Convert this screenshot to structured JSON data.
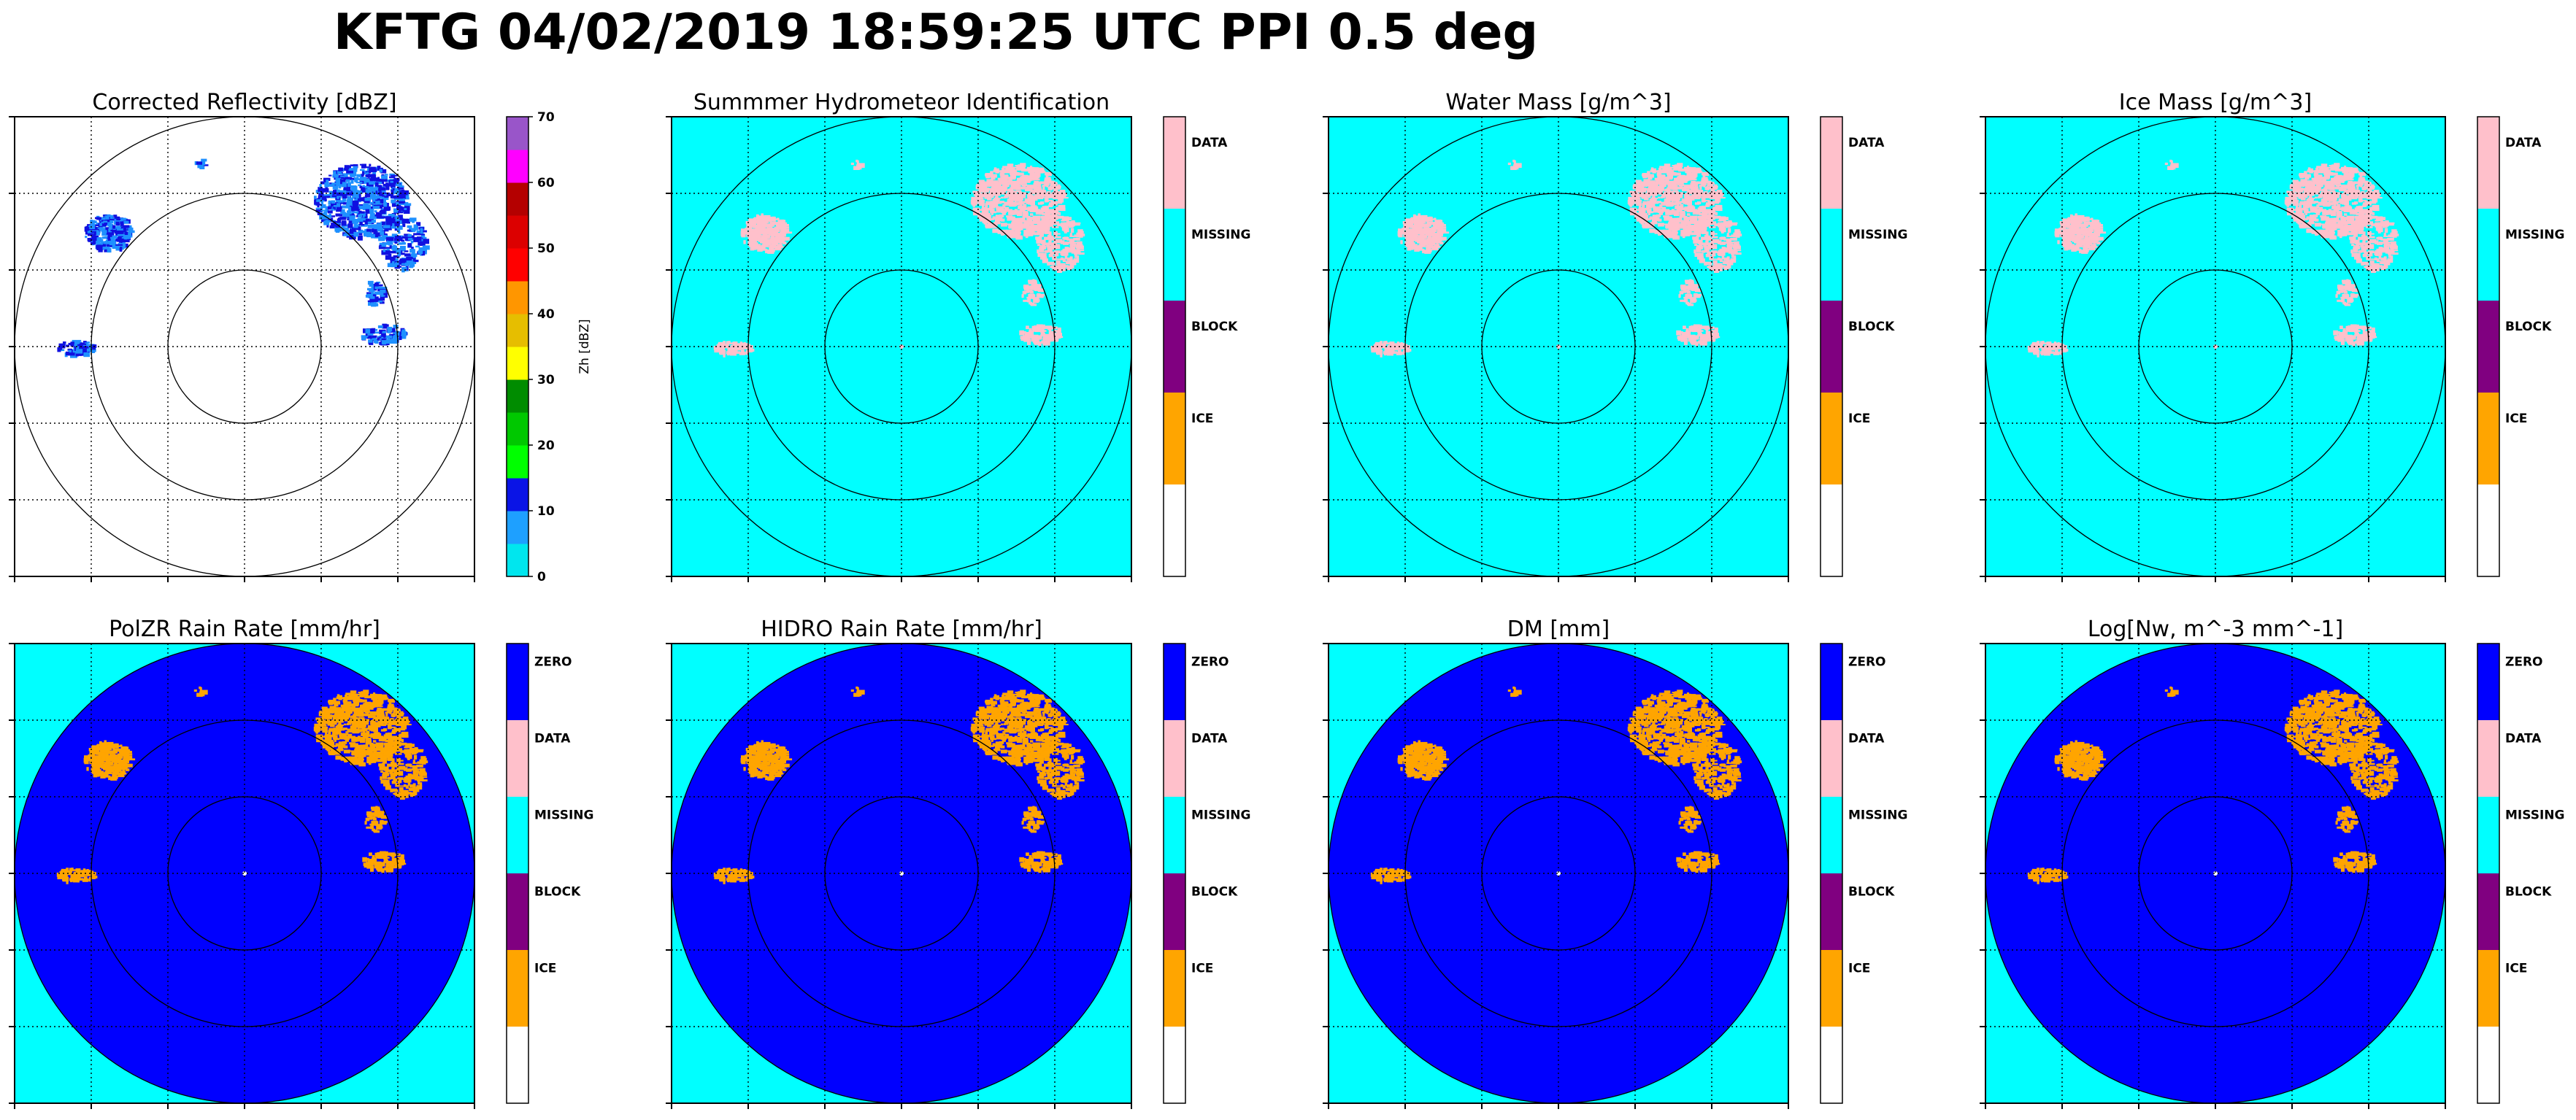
{
  "figure": {
    "title": "KFTG 04/02/2019 18:59:25 UTC PPI 0.5 deg"
  },
  "colors": {
    "cyan": "#00ffff",
    "blue": "#0000ff",
    "pink": "#ffc0cb",
    "purple": "#800080",
    "orange": "#ffa500",
    "white": "#ffffff",
    "echo_blue": "#1e90ff",
    "echo_dark": "#1010e0"
  },
  "chart_data": [
    {
      "type": "heatmap",
      "title": "Corrected Reflectivity [dBZ]",
      "background": "white",
      "colorbar": {
        "type": "continuous",
        "label": "Zh [dBZ]",
        "ticks": [
          "0",
          "10",
          "20",
          "30",
          "40",
          "50",
          "60",
          "70"
        ],
        "colors": [
          "#00e6ee",
          "#1ea0ff",
          "#0a14e6",
          "#00ff00",
          "#00c800",
          "#008c00",
          "#ffff00",
          "#e6be00",
          "#ff9600",
          "#ff0000",
          "#dc0000",
          "#b40000",
          "#ff00ff",
          "#9955c9"
        ]
      },
      "range_rings": 3,
      "grid": true
    },
    {
      "type": "heatmap",
      "title": "Summmer Hydrometeor Identification",
      "background": "cyan",
      "colorbar": {
        "type": "categorical",
        "labels": [
          "DATA",
          "MISSING",
          "BLOCK",
          "ICE",
          ""
        ],
        "colors": [
          "#ffc0cb",
          "#00ffff",
          "#800080",
          "#ffa500",
          "#ffffff"
        ]
      },
      "range_rings": 3,
      "grid": true
    },
    {
      "type": "heatmap",
      "title": "Water Mass [g/m^3]",
      "background": "cyan",
      "colorbar": {
        "type": "categorical",
        "labels": [
          "DATA",
          "MISSING",
          "BLOCK",
          "ICE",
          ""
        ],
        "colors": [
          "#ffc0cb",
          "#00ffff",
          "#800080",
          "#ffa500",
          "#ffffff"
        ]
      },
      "range_rings": 3,
      "grid": true
    },
    {
      "type": "heatmap",
      "title": "Ice Mass [g/m^3]",
      "background": "cyan",
      "colorbar": {
        "type": "categorical",
        "labels": [
          "DATA",
          "MISSING",
          "BLOCK",
          "ICE",
          ""
        ],
        "colors": [
          "#ffc0cb",
          "#00ffff",
          "#800080",
          "#ffa500",
          "#ffffff"
        ]
      },
      "range_rings": 3,
      "grid": true
    },
    {
      "type": "heatmap",
      "title": "PolZR Rain Rate [mm/hr]",
      "background": "cyan",
      "disk_color": "blue",
      "colorbar": {
        "type": "categorical",
        "labels": [
          "ZERO",
          "DATA",
          "MISSING",
          "BLOCK",
          "ICE",
          ""
        ],
        "colors": [
          "#0000ff",
          "#ffc0cb",
          "#00ffff",
          "#800080",
          "#ffa500",
          "#ffffff"
        ]
      },
      "range_rings": 3,
      "grid": true
    },
    {
      "type": "heatmap",
      "title": "HIDRO Rain Rate [mm/hr]",
      "background": "cyan",
      "disk_color": "blue",
      "colorbar": {
        "type": "categorical",
        "labels": [
          "ZERO",
          "DATA",
          "MISSING",
          "BLOCK",
          "ICE",
          ""
        ],
        "colors": [
          "#0000ff",
          "#ffc0cb",
          "#00ffff",
          "#800080",
          "#ffa500",
          "#ffffff"
        ]
      },
      "range_rings": 3,
      "grid": true
    },
    {
      "type": "heatmap",
      "title": "DM [mm]",
      "background": "cyan",
      "disk_color": "blue",
      "colorbar": {
        "type": "categorical",
        "labels": [
          "ZERO",
          "DATA",
          "MISSING",
          "BLOCK",
          "ICE",
          ""
        ],
        "colors": [
          "#0000ff",
          "#ffc0cb",
          "#00ffff",
          "#800080",
          "#ffa500",
          "#ffffff"
        ]
      },
      "range_rings": 3,
      "grid": true
    },
    {
      "type": "heatmap",
      "title": "Log[Nw, m^-3 mm^-1]",
      "background": "cyan",
      "disk_color": "blue",
      "colorbar": {
        "type": "categorical",
        "labels": [
          "ZERO",
          "DATA",
          "MISSING",
          "BLOCK",
          "ICE",
          ""
        ],
        "colors": [
          "#0000ff",
          "#ffc0cb",
          "#00ffff",
          "#800080",
          "#ffa500",
          "#ffffff"
        ]
      },
      "range_rings": 3,
      "grid": true
    }
  ]
}
